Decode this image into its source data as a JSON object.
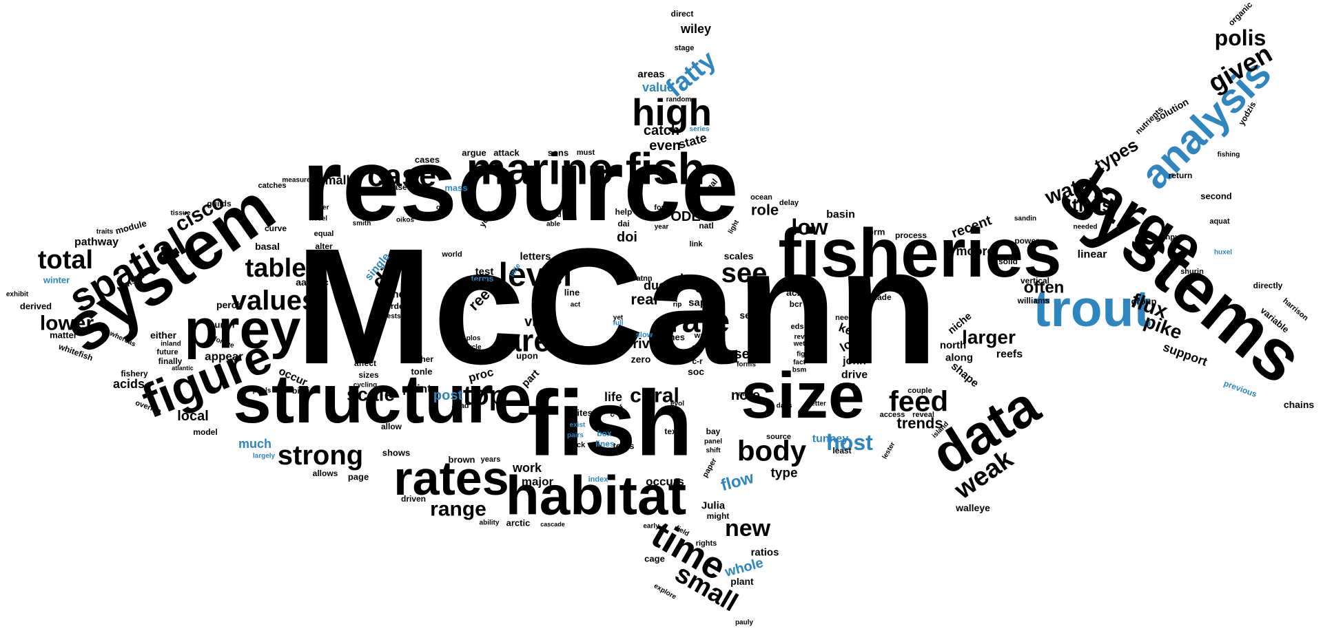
{
  "colors": {
    "primary": "#000000",
    "accent": "#2e86c1",
    "background": "#ffffff"
  },
  "words": [
    {
      "text": "McCann",
      "color": "primary"
    },
    {
      "text": "resource",
      "color": "primary"
    },
    {
      "text": "fish",
      "color": "primary"
    },
    {
      "text": "structure",
      "color": "primary"
    },
    {
      "text": "fisheries",
      "color": "primary"
    },
    {
      "text": "systems",
      "color": "primary"
    },
    {
      "text": "system",
      "color": "primary"
    },
    {
      "text": "size",
      "color": "primary"
    },
    {
      "text": "habitat",
      "color": "primary"
    },
    {
      "text": "marine fish",
      "color": "primary"
    },
    {
      "text": "prey",
      "color": "primary"
    },
    {
      "text": "large",
      "color": "primary"
    },
    {
      "text": "data",
      "color": "primary"
    },
    {
      "text": "trout",
      "color": "accent"
    },
    {
      "text": "rates",
      "color": "primary"
    },
    {
      "text": "figure",
      "color": "primary"
    },
    {
      "text": "spatial",
      "color": "primary"
    },
    {
      "text": "high",
      "color": "primary"
    },
    {
      "text": "time",
      "color": "primary"
    },
    {
      "text": "analysis",
      "color": "accent"
    },
    {
      "text": "case",
      "color": "primary"
    },
    {
      "text": "level",
      "color": "primary"
    },
    {
      "text": "area",
      "color": "primary"
    },
    {
      "text": "rate",
      "color": "primary"
    },
    {
      "text": "values",
      "color": "primary"
    },
    {
      "text": "table",
      "color": "primary"
    },
    {
      "text": "total",
      "color": "primary"
    },
    {
      "text": "strong",
      "color": "primary"
    },
    {
      "text": "top",
      "color": "primary"
    },
    {
      "text": "body",
      "color": "primary"
    },
    {
      "text": "feed",
      "color": "primary"
    },
    {
      "text": "small",
      "color": "primary"
    },
    {
      "text": "see",
      "color": "primary"
    },
    {
      "text": "weak",
      "color": "primary"
    },
    {
      "text": "given",
      "color": "primary"
    },
    {
      "text": "fatty",
      "color": "accent"
    },
    {
      "text": "polis",
      "color": "primary"
    },
    {
      "text": "water",
      "color": "primary"
    },
    {
      "text": "range",
      "color": "primary"
    },
    {
      "text": "new",
      "color": "primary"
    },
    {
      "text": "host",
      "color": "accent"
    },
    {
      "text": "coral",
      "color": "primary"
    },
    {
      "text": "diet",
      "color": "primary"
    },
    {
      "text": "lower",
      "color": "primary"
    },
    {
      "text": "cisco",
      "color": "primary"
    },
    {
      "text": "scale",
      "color": "primary"
    },
    {
      "text": "low",
      "color": "primary"
    },
    {
      "text": "flux",
      "color": "primary"
    },
    {
      "text": "thus",
      "color": "primary"
    },
    {
      "text": "types",
      "color": "primary"
    },
    {
      "text": "pike",
      "color": "primary"
    },
    {
      "text": "larger",
      "color": "primary"
    },
    {
      "text": "often",
      "color": "primary"
    },
    {
      "text": "trends",
      "color": "primary"
    },
    {
      "text": "flow",
      "color": "accent"
    },
    {
      "text": "whole",
      "color": "accent"
    },
    {
      "text": "post",
      "color": "accent"
    },
    {
      "text": "much",
      "color": "accent"
    },
    {
      "text": "value",
      "color": "accent"
    },
    {
      "text": "tunney",
      "color": "accent"
    },
    {
      "text": "catch",
      "color": "primary"
    },
    {
      "text": "even",
      "color": "primary"
    },
    {
      "text": "state",
      "color": "primary"
    },
    {
      "text": "wiley",
      "color": "primary"
    },
    {
      "text": "areas",
      "color": "primary"
    },
    {
      "text": "smaller",
      "color": "primary"
    },
    {
      "text": "please",
      "color": "primary"
    },
    {
      "text": "cases",
      "color": "primary"
    },
    {
      "text": "argue",
      "color": "primary"
    },
    {
      "text": "attack",
      "color": "primary"
    },
    {
      "text": "sons",
      "color": "primary"
    },
    {
      "text": "ODE",
      "color": "primary"
    },
    {
      "text": "role",
      "color": "primary"
    },
    {
      "text": "basin",
      "color": "primary"
    },
    {
      "text": "recent",
      "color": "primary"
    },
    {
      "text": "moore",
      "color": "primary"
    },
    {
      "text": "linear",
      "color": "primary"
    },
    {
      "text": "pathway",
      "color": "primary"
    },
    {
      "text": "module",
      "color": "primary"
    },
    {
      "text": "guilds",
      "color": "primary"
    },
    {
      "text": "basal",
      "color": "primary"
    },
    {
      "text": "aassoc",
      "color": "primary"
    },
    {
      "text": "perch",
      "color": "primary"
    },
    {
      "text": "occur",
      "color": "primary"
    },
    {
      "text": "acids",
      "color": "primary"
    },
    {
      "text": "local",
      "color": "primary"
    },
    {
      "text": "tend",
      "color": "primary"
    },
    {
      "text": "point",
      "color": "primary"
    },
    {
      "text": "test",
      "color": "primary"
    },
    {
      "text": "reef",
      "color": "primary"
    },
    {
      "text": "via",
      "color": "primary"
    },
    {
      "text": "due",
      "color": "primary"
    },
    {
      "text": "real",
      "color": "primary"
    },
    {
      "text": "river",
      "color": "primary"
    },
    {
      "text": "loss",
      "color": "primary"
    },
    {
      "text": "scales",
      "color": "primary"
    },
    {
      "text": "set",
      "color": "primary"
    },
    {
      "text": "note",
      "color": "primary"
    },
    {
      "text": "sea",
      "color": "primary"
    },
    {
      "text": "key",
      "color": "primary"
    },
    {
      "text": "long",
      "color": "primary"
    },
    {
      "text": "john",
      "color": "primary"
    },
    {
      "text": "drive",
      "color": "primary"
    },
    {
      "text": "shape",
      "color": "primary"
    },
    {
      "text": "along",
      "color": "primary"
    },
    {
      "text": "north",
      "color": "primary"
    },
    {
      "text": "niche",
      "color": "primary"
    },
    {
      "text": "reefs",
      "color": "primary"
    },
    {
      "text": "support",
      "color": "primary"
    },
    {
      "text": "chains",
      "color": "primary"
    },
    {
      "text": "solution",
      "color": "primary"
    },
    {
      "text": "walleye",
      "color": "primary"
    },
    {
      "text": "work",
      "color": "primary"
    },
    {
      "text": "major",
      "color": "primary"
    },
    {
      "text": "life",
      "color": "primary"
    },
    {
      "text": "proc",
      "color": "primary"
    },
    {
      "text": "occurs",
      "color": "primary"
    },
    {
      "text": "type",
      "color": "primary"
    },
    {
      "text": "Julia",
      "color": "primary"
    },
    {
      "text": "ratios",
      "color": "primary"
    },
    {
      "text": "plant",
      "color": "primary"
    },
    {
      "text": "appear",
      "color": "primary"
    },
    {
      "text": "either",
      "color": "primary"
    },
    {
      "text": "finally",
      "color": "primary"
    },
    {
      "text": "derived",
      "color": "primary"
    },
    {
      "text": "matter",
      "color": "primary"
    },
    {
      "text": "fishery",
      "color": "primary"
    },
    {
      "text": "huron",
      "color": "primary"
    },
    {
      "text": "brown",
      "color": "primary"
    },
    {
      "text": "shows",
      "color": "primary"
    },
    {
      "text": "page",
      "color": "primary"
    },
    {
      "text": "arctic",
      "color": "primary"
    },
    {
      "text": "driven",
      "color": "primary"
    },
    {
      "text": "allows",
      "color": "primary"
    },
    {
      "text": "tools",
      "color": "primary"
    },
    {
      "text": "letters",
      "color": "primary"
    },
    {
      "text": "single",
      "color": "accent"
    },
    {
      "text": "mass",
      "color": "accent"
    },
    {
      "text": "winter",
      "color": "accent"
    },
    {
      "text": "index",
      "color": "accent"
    },
    {
      "text": "previous",
      "color": "accent"
    },
    {
      "text": "terms",
      "color": "accent"
    },
    {
      "text": "slow",
      "color": "accent"
    },
    {
      "text": "full",
      "color": "accent"
    },
    {
      "text": "exist",
      "color": "accent"
    },
    {
      "text": "pairs",
      "color": "accent"
    },
    {
      "text": "box",
      "color": "accent"
    },
    {
      "text": "lines",
      "color": "accent"
    },
    {
      "text": "little",
      "color": "accent"
    },
    {
      "text": "largely",
      "color": "accent"
    },
    {
      "text": "huxel",
      "color": "accent"
    },
    {
      "text": "series",
      "color": "accent"
    },
    {
      "text": "organic",
      "color": "primary"
    },
    {
      "text": "yodzis",
      "color": "primary"
    },
    {
      "text": "nutrients",
      "color": "primary"
    },
    {
      "text": "group",
      "color": "primary"
    },
    {
      "text": "variable",
      "color": "primary"
    },
    {
      "text": "directly",
      "color": "primary"
    },
    {
      "text": "harrison",
      "color": "primary"
    },
    {
      "text": "second",
      "color": "primary"
    },
    {
      "text": "fishing",
      "color": "primary"
    },
    {
      "text": "aquat",
      "color": "primary"
    },
    {
      "text": "return",
      "color": "primary"
    },
    {
      "text": "inputs",
      "color": "primary"
    },
    {
      "text": "shurin",
      "color": "primary"
    },
    {
      "text": "sandin",
      "color": "primary"
    },
    {
      "text": "needed",
      "color": "primary"
    },
    {
      "text": "power",
      "color": "primary"
    },
    {
      "text": "solid",
      "color": "primary"
    },
    {
      "text": "vertical",
      "color": "primary"
    },
    {
      "text": "williams",
      "color": "primary"
    },
    {
      "text": "made",
      "color": "primary"
    },
    {
      "text": "process",
      "color": "primary"
    },
    {
      "text": "form",
      "color": "primary"
    },
    {
      "text": "couple",
      "color": "primary"
    },
    {
      "text": "access",
      "color": "primary"
    },
    {
      "text": "reveal",
      "color": "primary"
    },
    {
      "text": "island",
      "color": "primary"
    },
    {
      "text": "lester",
      "color": "primary"
    },
    {
      "text": "direct",
      "color": "primary"
    },
    {
      "text": "stage",
      "color": "primary"
    },
    {
      "text": "random",
      "color": "primary"
    },
    {
      "text": "algal",
      "color": "primary"
    },
    {
      "text": "must",
      "color": "primary"
    },
    {
      "text": "ocean",
      "color": "primary"
    },
    {
      "text": "delay",
      "color": "primary"
    },
    {
      "text": "help",
      "color": "primary"
    },
    {
      "text": "four",
      "color": "primary"
    },
    {
      "text": "dai",
      "color": "primary"
    },
    {
      "text": "year",
      "color": "primary"
    },
    {
      "text": "natl",
      "color": "primary"
    },
    {
      "text": "light",
      "color": "primary"
    },
    {
      "text": "doi",
      "color": "primary"
    },
    {
      "text": "link",
      "color": "primary"
    },
    {
      "text": "like",
      "color": "primary"
    },
    {
      "text": "ms",
      "color": "primary"
    },
    {
      "text": "atnn",
      "color": "primary"
    },
    {
      "text": "δn",
      "color": "primary"
    },
    {
      "text": "sap",
      "color": "primary"
    },
    {
      "text": "mar",
      "color": "primary"
    },
    {
      "text": "rip",
      "color": "primary"
    },
    {
      "text": "acid",
      "color": "primary"
    },
    {
      "text": "bcr",
      "color": "primary"
    },
    {
      "text": "soil",
      "color": "primary"
    },
    {
      "text": "eds",
      "color": "primary"
    },
    {
      "text": "rev",
      "color": "primary"
    },
    {
      "text": "wet",
      "color": "primary"
    },
    {
      "text": "figs",
      "color": "primary"
    },
    {
      "text": "fact",
      "color": "primary"
    },
    {
      "text": "bsm",
      "color": "primary"
    },
    {
      "text": "zone",
      "color": "primary"
    },
    {
      "text": "need",
      "color": "primary"
    },
    {
      "text": "better",
      "color": "primary"
    },
    {
      "text": "days",
      "color": "primary"
    },
    {
      "text": "unit",
      "color": "primary"
    },
    {
      "text": "forms",
      "color": "primary"
    },
    {
      "text": "erie",
      "color": "primary"
    },
    {
      "text": "soc",
      "color": "primary"
    },
    {
      "text": "c-r",
      "color": "primary"
    },
    {
      "text": "times",
      "color": "primary"
    },
    {
      "text": "yet",
      "color": "primary"
    },
    {
      "text": "zero",
      "color": "primary"
    },
    {
      "text": "evol",
      "color": "primary"
    },
    {
      "text": "text",
      "color": "primary"
    },
    {
      "text": "bay",
      "color": "primary"
    },
    {
      "text": "panel",
      "color": "primary"
    },
    {
      "text": "shift",
      "color": "primary"
    },
    {
      "text": "source",
      "color": "primary"
    },
    {
      "text": "least",
      "color": "primary"
    },
    {
      "text": "paper",
      "color": "primary"
    },
    {
      "text": "might",
      "color": "primary"
    },
    {
      "text": "field",
      "color": "primary"
    },
    {
      "text": "rights",
      "color": "primary"
    },
    {
      "text": "early",
      "color": "primary"
    },
    {
      "text": "cage",
      "color": "primary"
    },
    {
      "text": "explore",
      "color": "primary"
    },
    {
      "text": "pauly",
      "color": "primary"
    },
    {
      "text": "clear",
      "color": "primary"
    },
    {
      "text": "sites",
      "color": "primary"
    },
    {
      "text": "click",
      "color": "primary"
    },
    {
      "text": "pca",
      "color": "primary"
    },
    {
      "text": "now",
      "color": "primary"
    },
    {
      "text": "act",
      "color": "primary"
    },
    {
      "text": "upon",
      "color": "primary"
    },
    {
      "text": "part",
      "color": "primary"
    },
    {
      "text": "line",
      "color": "primary"
    },
    {
      "text": "way",
      "color": "primary"
    },
    {
      "text": "catches",
      "color": "primary"
    },
    {
      "text": "measured",
      "color": "primary"
    },
    {
      "text": "tissue",
      "color": "primary"
    },
    {
      "text": "traits",
      "color": "primary"
    },
    {
      "text": "transfer",
      "color": "primary"
    },
    {
      "text": "exhibit",
      "color": "primary"
    },
    {
      "text": "whereas",
      "color": "primary"
    },
    {
      "text": "whitefish",
      "color": "primary"
    },
    {
      "text": "curve",
      "color": "primary"
    },
    {
      "text": "differ",
      "color": "primary"
    },
    {
      "text": "novel",
      "color": "primary"
    },
    {
      "text": "equal",
      "color": "primary"
    },
    {
      "text": "alter",
      "color": "primary"
    },
    {
      "text": "smith",
      "color": "primary"
    },
    {
      "text": "oikos",
      "color": "primary"
    },
    {
      "text": "york",
      "color": "primary"
    },
    {
      "text": "open",
      "color": "primary"
    },
    {
      "text": "world",
      "color": "primary"
    },
    {
      "text": "pool",
      "color": "primary"
    },
    {
      "text": "fixed",
      "color": "primary"
    },
    {
      "text": "able",
      "color": "primary"
    },
    {
      "text": "order",
      "color": "primary"
    },
    {
      "text": "tests",
      "color": "primary"
    },
    {
      "text": "holt",
      "color": "primary"
    },
    {
      "text": "plos",
      "color": "primary"
    },
    {
      "text": "cycle",
      "color": "primary"
    },
    {
      "text": "white",
      "color": "primary"
    },
    {
      "text": "rather",
      "color": "primary"
    },
    {
      "text": "tonle",
      "color": "primary"
    },
    {
      "text": "affect",
      "color": "primary"
    },
    {
      "text": "sizes",
      "color": "primary"
    },
    {
      "text": "cycling",
      "color": "primary"
    },
    {
      "text": "atlantic",
      "color": "primary"
    },
    {
      "text": "inland",
      "color": "primary"
    },
    {
      "text": "forage",
      "color": "primary"
    },
    {
      "text": "future",
      "color": "primary"
    },
    {
      "text": "biotic",
      "color": "primary"
    },
    {
      "text": "pools",
      "color": "primary"
    },
    {
      "text": "overlap",
      "color": "primary"
    },
    {
      "text": "model",
      "color": "primary"
    },
    {
      "text": "acad",
      "color": "primary"
    },
    {
      "text": "allow",
      "color": "primary"
    },
    {
      "text": "years",
      "color": "primary"
    },
    {
      "text": "ability",
      "color": "primary"
    },
    {
      "text": "cascade",
      "color": "primary"
    }
  ]
}
